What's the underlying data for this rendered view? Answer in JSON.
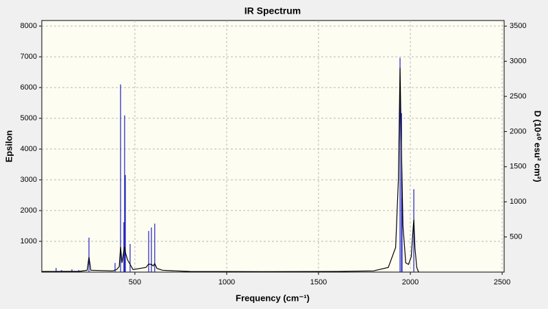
{
  "chart_data": {
    "type": "line",
    "title": "IR Spectrum",
    "x_label": "Frequency (cm⁻¹)",
    "y_label": "Epsilon",
    "y2_label": "D (10⁴⁰ esu² cm²)",
    "xlim": [
      -7,
      2511
    ],
    "ylim": [
      0,
      8180
    ],
    "y2lim": [
      0,
      3580
    ],
    "xticks": [
      500,
      1000,
      1500,
      2000,
      2500
    ],
    "yticks": [
      1000,
      2000,
      3000,
      4000,
      5000,
      6000,
      7000,
      8000
    ],
    "y2ticks": [
      500,
      1000,
      1500,
      2000,
      2500,
      3000,
      3500
    ],
    "grid": true,
    "series": [
      {
        "type": "line",
        "color": "#000000",
        "x": [
          -7,
          60,
          200,
          240,
          250,
          260,
          380,
          400,
          415,
          422,
          430,
          440,
          444,
          450,
          460,
          474,
          490,
          560,
          575,
          590,
          600,
          608,
          620,
          650,
          800,
          1200,
          1600,
          1800,
          1880,
          1920,
          1935,
          1944,
          1950,
          1960,
          1975,
          1990,
          2005,
          2015,
          2019,
          2025,
          2035,
          2045
        ],
        "values": [
          20,
          20,
          25,
          60,
          490,
          60,
          40,
          80,
          180,
          820,
          300,
          700,
          820,
          600,
          400,
          250,
          80,
          150,
          260,
          250,
          200,
          280,
          120,
          60,
          20,
          15,
          20,
          40,
          150,
          800,
          3000,
          6640,
          4500,
          1500,
          300,
          250,
          500,
          1400,
          1710,
          800,
          150,
          0
        ]
      },
      {
        "type": "stem",
        "color": "#1f1fbf",
        "axis": "y2",
        "x": [
          71,
          101,
          157,
          194,
          250,
          392,
          422,
          440,
          444,
          448,
          474,
          575,
          590,
          608,
          1944,
          1952,
          1955,
          2019
        ],
        "values": [
          60,
          30,
          40,
          30,
          490,
          130,
          2670,
          710,
          2230,
          1380,
          400,
          585,
          635,
          690,
          3050,
          2260,
          1060,
          1180
        ]
      }
    ]
  }
}
